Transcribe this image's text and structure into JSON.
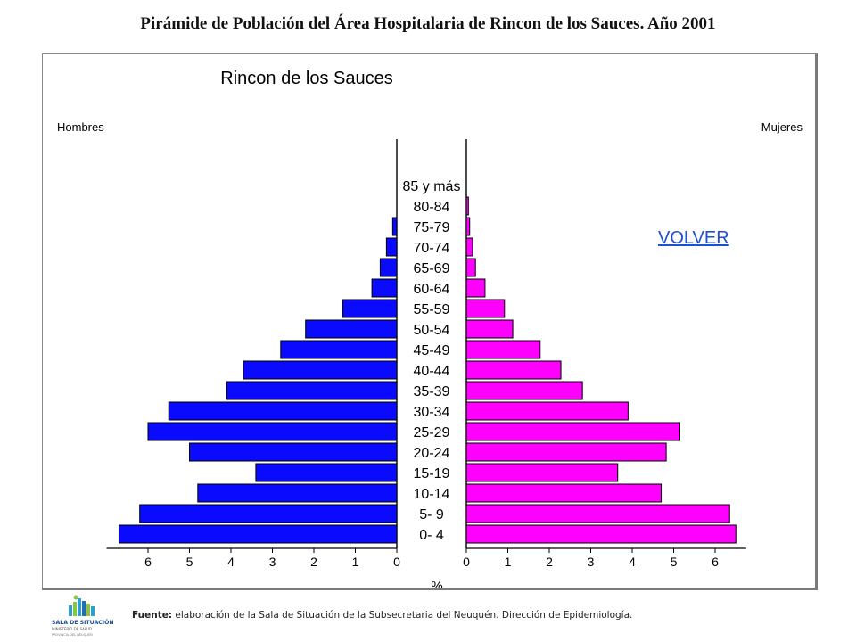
{
  "page": {
    "title": "Pirámide de Población del Área Hospitalaria de Rincon de los Sauces. Año 2001",
    "volver_label": "VOLVER",
    "footer_label": "Fuente:",
    "footer_text": " elaboración de la Sala de Situación de la Subsecretaria del Neuquén. Dirección de Epidemiología.",
    "logo": {
      "name": "sala-de-situacion-logo",
      "line1": "SALA DE SITUACIÓN",
      "line2": "MINISTERIO DE SALUD",
      "line3": "PROVINCIA DEL NEUQUÉN",
      "colors": [
        "#2a9fd6",
        "#8cc63f",
        "#1f6fb2"
      ]
    }
  },
  "chart_data": {
    "type": "bar",
    "subtype": "population-pyramid",
    "title": "Rincon de los Sauces",
    "left_label": "Hombres",
    "right_label": "Mujeres",
    "xlabel": "%",
    "categories": [
      "85 y más",
      "80-84",
      "75-79",
      "70-74",
      "65-69",
      "60-64",
      "55-59",
      "50-54",
      "45-49",
      "40-44",
      "35-39",
      "30-34",
      "25-29",
      "20-24",
      "15-19",
      "10-14",
      "5- 9",
      "0- 4"
    ],
    "series": [
      {
        "name": "Hombres",
        "color": "#0a0aff",
        "values": [
          0.0,
          0.0,
          0.1,
          0.25,
          0.4,
          0.6,
          1.3,
          2.2,
          2.8,
          3.7,
          4.1,
          5.5,
          6.0,
          5.0,
          3.4,
          4.8,
          6.2,
          6.7
        ]
      },
      {
        "name": "Mujeres",
        "color": "#ff00ff",
        "values": [
          0.0,
          0.05,
          0.08,
          0.15,
          0.22,
          0.45,
          0.92,
          1.12,
          1.78,
          2.28,
          2.8,
          3.9,
          5.15,
          4.82,
          3.65,
          4.7,
          6.35,
          6.5
        ]
      }
    ],
    "ticks_left": [
      "6",
      "5",
      "4",
      "3",
      "2",
      "1",
      "0"
    ],
    "ticks_right": [
      "0",
      "1",
      "2",
      "3",
      "4",
      "5",
      "6"
    ],
    "xlim": [
      0,
      7
    ],
    "grid": false,
    "legend": "none"
  }
}
